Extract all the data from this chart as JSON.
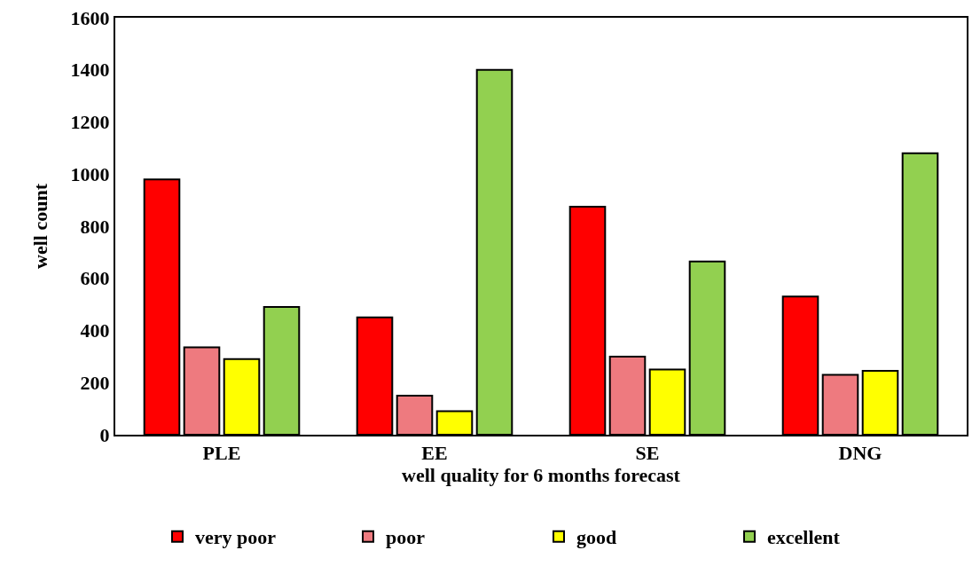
{
  "chart_data": {
    "type": "bar",
    "xlabel": "well quality for 6 months forecast",
    "ylabel": "well count",
    "categories": [
      "PLE",
      "EE",
      "SE",
      "DNG"
    ],
    "series": [
      {
        "name": "very poor",
        "color": "#ff0000",
        "values": [
          980,
          450,
          875,
          530
        ]
      },
      {
        "name": "poor",
        "color": "#ee7a7f",
        "values": [
          335,
          150,
          300,
          230
        ]
      },
      {
        "name": "good",
        "color": "#ffff00",
        "values": [
          290,
          90,
          250,
          245
        ]
      },
      {
        "name": "excellent",
        "color": "#92d050",
        "values": [
          490,
          1400,
          665,
          1080
        ]
      }
    ],
    "ylim": [
      0,
      1600
    ],
    "yticks": [
      0,
      200,
      400,
      600,
      800,
      1000,
      1200,
      1400,
      1600
    ],
    "grid": false,
    "legend": "bottom"
  }
}
